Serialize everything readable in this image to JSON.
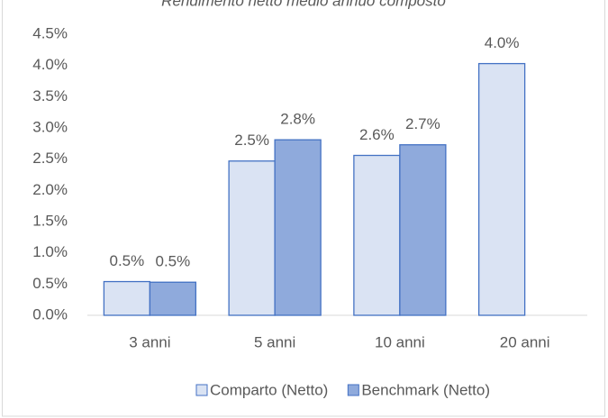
{
  "chart_data": {
    "type": "bar",
    "title": "Rendimento netto medio annuo composto",
    "categories": [
      "3 anni",
      "5 anni",
      "10 anni",
      "20 anni"
    ],
    "series": [
      {
        "name": "Comparto (Netto)",
        "color": "#dae3f3",
        "values": [
          0.54,
          2.47,
          2.56,
          4.03
        ],
        "value_labels": [
          "0.5%",
          "2.5%",
          "2.6%",
          "4.0%"
        ]
      },
      {
        "name": "Benchmark (Netto)",
        "color": "#8faadc",
        "values": [
          0.53,
          2.81,
          2.73,
          null
        ],
        "value_labels": [
          "0.5%",
          "2.8%",
          "2.7%",
          null
        ]
      }
    ],
    "ylim": [
      0,
      4.5
    ],
    "yticks": [
      {
        "value": 0,
        "label": "0.0%"
      },
      {
        "value": 0.5,
        "label": "0.5%"
      },
      {
        "value": 1,
        "label": "1.0%"
      },
      {
        "value": 1.5,
        "label": "1.5%"
      },
      {
        "value": 2,
        "label": "2.0%"
      },
      {
        "value": 2.5,
        "label": "2.5%"
      },
      {
        "value": 3,
        "label": "3.0%"
      },
      {
        "value": 3.5,
        "label": "3.5%"
      },
      {
        "value": 4,
        "label": "4.0%"
      },
      {
        "value": 4.5,
        "label": "4.5%"
      }
    ],
    "grid": false,
    "legend": "bottom"
  }
}
